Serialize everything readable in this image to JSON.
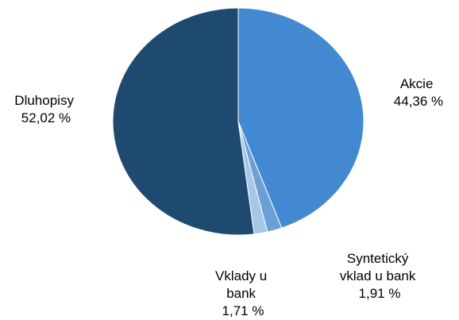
{
  "chart_data": {
    "type": "pie",
    "title": "",
    "slices": [
      {
        "name": "Akcie",
        "value": 44.36,
        "value_label": "44,36 %",
        "color": "#4389D2",
        "label_lines": [
          "Akcie"
        ]
      },
      {
        "name": "Syntetický vklad u bank",
        "value": 1.91,
        "value_label": "1,91 %",
        "color": "#6C9FD6",
        "label_lines": [
          "Syntetický",
          "vklad u bank"
        ]
      },
      {
        "name": "Vklady u bank",
        "value": 1.71,
        "value_label": "1,71 %",
        "color": "#A7C7E9",
        "label_lines": [
          "Vklady u",
          "bank"
        ]
      },
      {
        "name": "Dluhopisy",
        "value": 52.02,
        "value_label": "52,02 %",
        "color": "#1F4A70",
        "label_lines": [
          "Dluhopisy"
        ]
      }
    ],
    "legend": "none",
    "labels": "outside"
  }
}
